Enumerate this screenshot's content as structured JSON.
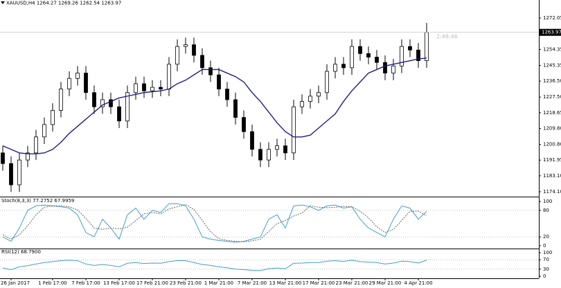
{
  "chart_data": [
    {
      "type": "candlestick",
      "title": "XAUUSD,H4  1264.27 1269.26 1262.54 1263.97",
      "countdown": "2:48:46",
      "last_price": 1263.97,
      "categories": [
        null,
        "26 Jan 2017",
        null,
        null,
        null,
        null,
        "1 Feb 17:00",
        null,
        null,
        null,
        "7 Feb 17:00",
        null,
        null,
        null,
        "13 Feb 17:00",
        null,
        null,
        null,
        "17 Feb 21:00",
        null,
        null,
        null,
        "23 Feb 21:00",
        null,
        null,
        null,
        "1 Mar 21:00",
        null,
        null,
        null,
        "7 Mar 21:00",
        null,
        null,
        null,
        "13 Mar 21:00",
        null,
        null,
        null,
        "17 Mar 21:00",
        null,
        null,
        null,
        "23 Mar 21:00",
        null,
        null,
        null,
        "29 Mar 21:00",
        null,
        null,
        null,
        "4 Apr 21:00",
        null
      ],
      "open": [
        1196,
        1190,
        1178,
        1192,
        1196,
        1205,
        1212,
        1220,
        1232,
        1238,
        1241,
        1230,
        1222,
        1226,
        1222,
        1214,
        1230,
        1235,
        1231,
        1233,
        1232,
        1246,
        1256,
        1257,
        1251,
        1244,
        1240,
        1232,
        1226,
        1216,
        1208,
        1198,
        1192,
        1198,
        1200,
        1196,
        1222,
        1225,
        1228,
        1230,
        1242,
        1246,
        1244,
        1256,
        1252,
        1250,
        1247,
        1241,
        1245,
        1256,
        1254,
        1248
      ],
      "high": [
        1200,
        1194,
        1196,
        1200,
        1209,
        1216,
        1224,
        1236,
        1242,
        1245,
        1245,
        1234,
        1230,
        1230,
        1226,
        1234,
        1239,
        1239,
        1237,
        1237,
        1250,
        1260,
        1261,
        1261,
        1255,
        1248,
        1244,
        1236,
        1230,
        1220,
        1212,
        1202,
        1202,
        1204,
        1204,
        1226,
        1229,
        1232,
        1234,
        1246,
        1250,
        1250,
        1260,
        1260,
        1256,
        1254,
        1251,
        1249,
        1260,
        1260,
        1258,
        1269.26
      ],
      "low": [
        1186,
        1174,
        1174,
        1188,
        1192,
        1201,
        1208,
        1216,
        1228,
        1234,
        1226,
        1218,
        1218,
        1218,
        1210,
        1210,
        1226,
        1227,
        1227,
        1228,
        1228,
        1242,
        1252,
        1247,
        1240,
        1236,
        1228,
        1222,
        1212,
        1204,
        1194,
        1188,
        1188,
        1194,
        1192,
        1192,
        1218,
        1221,
        1224,
        1226,
        1238,
        1240,
        1240,
        1248,
        1246,
        1243,
        1237,
        1237,
        1241,
        1250,
        1244,
        1244
      ],
      "close": [
        1190,
        1178,
        1192,
        1196,
        1205,
        1212,
        1220,
        1232,
        1238,
        1241,
        1230,
        1222,
        1226,
        1222,
        1214,
        1230,
        1235,
        1231,
        1233,
        1232,
        1246,
        1256,
        1257,
        1251,
        1244,
        1240,
        1232,
        1226,
        1216,
        1208,
        1198,
        1192,
        1198,
        1200,
        1196,
        1222,
        1225,
        1228,
        1230,
        1242,
        1246,
        1244,
        1256,
        1252,
        1250,
        1247,
        1241,
        1245,
        1256,
        1254,
        1248,
        1263.97
      ],
      "series": [
        {
          "color": "#1c1c8a",
          "values": [
            1200,
            1198,
            1196,
            1195.5,
            1195.5,
            1196,
            1198,
            1202,
            1207,
            1211,
            1215,
            1219,
            1223,
            1225,
            1227,
            1228,
            1229,
            1230,
            1230.5,
            1231,
            1232,
            1235,
            1237,
            1240,
            1243,
            1243,
            1243,
            1241,
            1239,
            1236,
            1230,
            1225,
            1219,
            1213,
            1208,
            1205,
            1205,
            1206,
            1210,
            1214,
            1218,
            1225,
            1231,
            1236,
            1241,
            1243,
            1245,
            1246,
            1247,
            1248,
            1249,
            1249.5
          ]
        }
      ],
      "ylim": [
        1171.75,
        1282.2
      ],
      "yticks": [
        1272.05,
        1254.35,
        1245.35,
        {
          "value": 1236.5,
          "label": "1236.50"
        },
        {
          "value": 1227.5,
          "label": "1227.50"
        },
        1218.65,
        {
          "value": 1209.8,
          "label": "1209.80"
        },
        {
          "value": 1200.8,
          "label": "1200.80"
        },
        1191.95,
        {
          "value": 1183.1,
          "label": "1183.10"
        },
        {
          "value": 1174.1,
          "label": "1174.10"
        }
      ]
    },
    {
      "type": "line",
      "title": "Stoch(8,3,3) 77.2752 67.9959",
      "series": [
        {
          "color": "#3f9fc9",
          "dash": false,
          "values": [
            20,
            10,
            40,
            80,
            90,
            92,
            90,
            88,
            85,
            70,
            30,
            20,
            60,
            40,
            15,
            70,
            85,
            60,
            80,
            75,
            95,
            95,
            90,
            60,
            20,
            15,
            12,
            10,
            8,
            10,
            15,
            20,
            60,
            70,
            40,
            90,
            92,
            88,
            80,
            90,
            92,
            85,
            88,
            60,
            40,
            30,
            20,
            60,
            90,
            85,
            60,
            77.2752
          ]
        },
        {
          "color": "#666666",
          "dash": true,
          "values": [
            25,
            15,
            25,
            45,
            70,
            87,
            90,
            90,
            88,
            81,
            62,
            40,
            37,
            40,
            38,
            42,
            57,
            72,
            75,
            72,
            83,
            88,
            93,
            82,
            57,
            32,
            16,
            12,
            10,
            9,
            11,
            15,
            32,
            50,
            57,
            67,
            74,
            90,
            87,
            86,
            87,
            89,
            88,
            78,
            63,
            43,
            30,
            37,
            57,
            78,
            78,
            67.9959
          ]
        }
      ],
      "ylim": [
        0,
        100
      ],
      "yticks": [
        100,
        80,
        20,
        0
      ],
      "levels": [
        80,
        20
      ]
    },
    {
      "type": "line",
      "title": "RSI(12) 68.7900",
      "series": [
        {
          "color": "#3f9fc9",
          "dash": false,
          "values": [
            35,
            28,
            40,
            45,
            52,
            58,
            62,
            66,
            68,
            66,
            52,
            46,
            50,
            46,
            40,
            55,
            58,
            54,
            56,
            55,
            62,
            66,
            66,
            58,
            50,
            46,
            40,
            36,
            30,
            28,
            25,
            24,
            32,
            35,
            32,
            55,
            56,
            58,
            58,
            64,
            66,
            63,
            68,
            62,
            60,
            58,
            52,
            56,
            64,
            62,
            56,
            68.79
          ]
        }
      ],
      "ylim": [
        0,
        100
      ],
      "yticks": [
        100,
        70,
        30,
        0
      ],
      "levels": [
        70,
        30
      ]
    }
  ]
}
